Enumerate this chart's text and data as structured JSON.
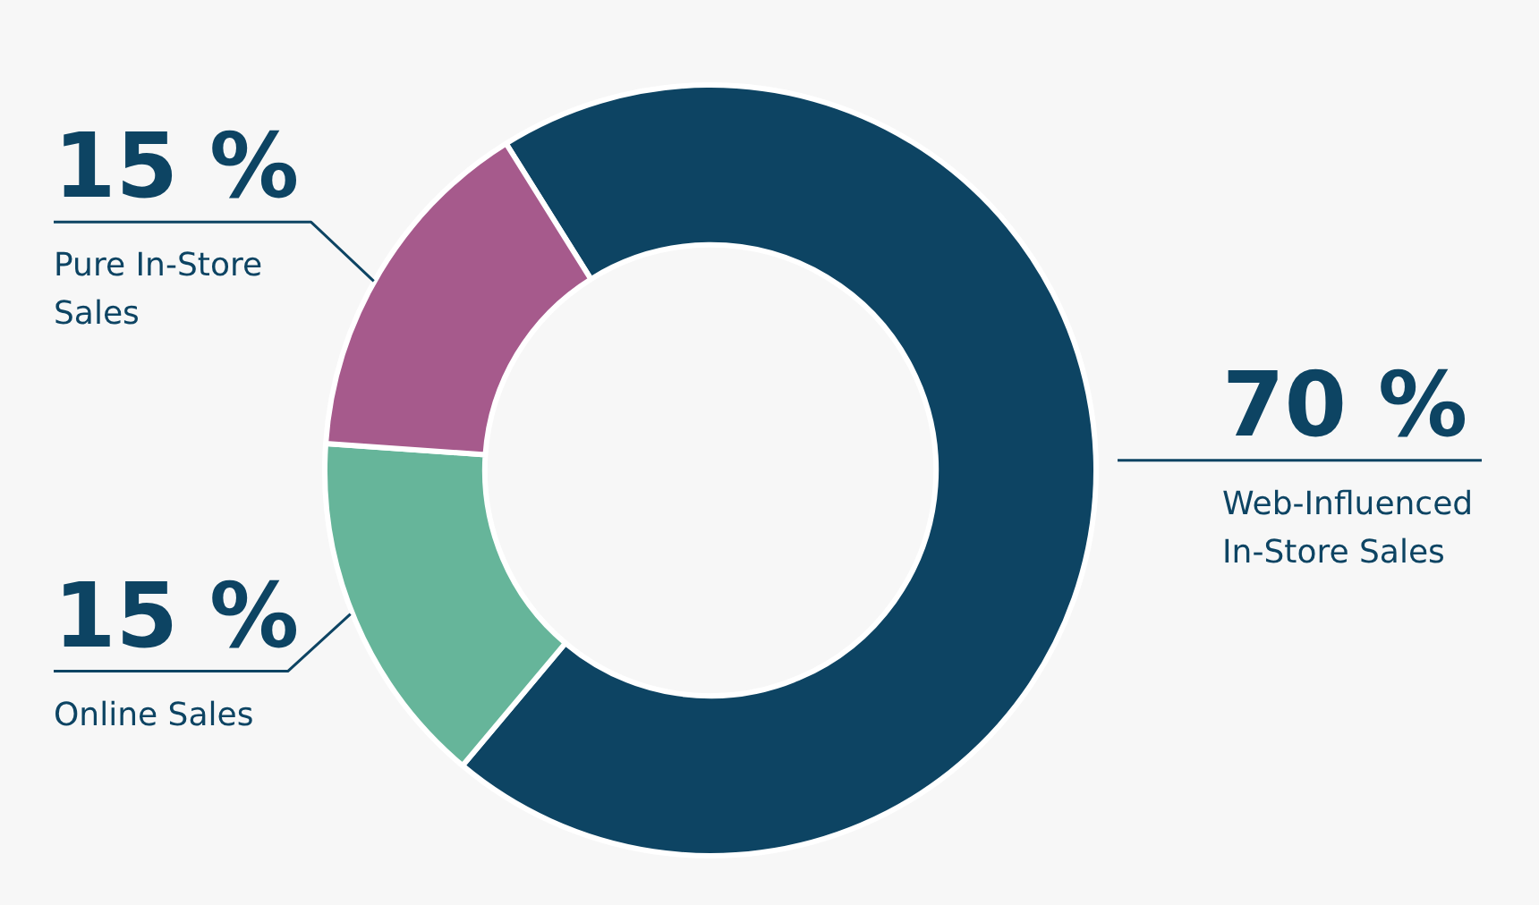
{
  "chart_data": {
    "type": "donut",
    "categories": [
      "Web-Influenced In-Store Sales",
      "Online Sales",
      "Pure In-Store Sales"
    ],
    "values": [
      70,
      15,
      15
    ],
    "colors": [
      "#0d4463",
      "#66b59a",
      "#a65a8c"
    ],
    "value_labels": [
      "70 %",
      "15 %",
      "15 %"
    ],
    "legend": false
  }
}
